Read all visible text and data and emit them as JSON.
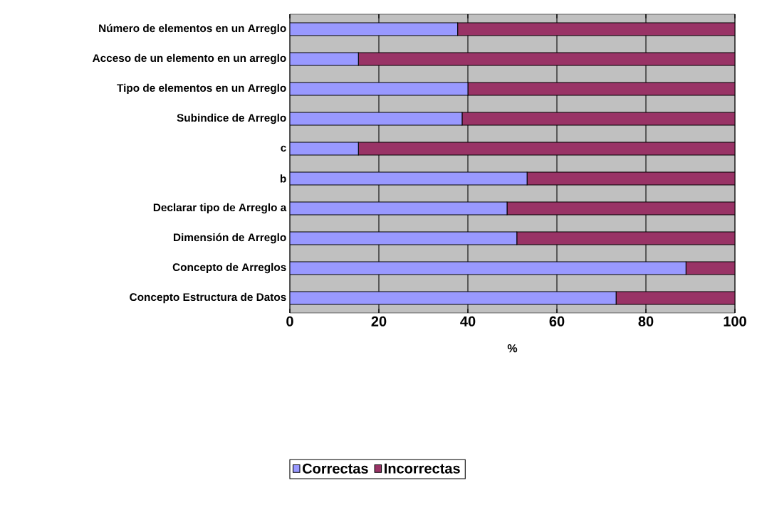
{
  "chart_data": {
    "type": "bar",
    "orientation": "horizontal",
    "stacked": true,
    "categories": [
      "Número de elementos en un Arreglo",
      "Acceso de un elemento en un arreglo",
      "Tipo de elementos en un Arreglo",
      "Subindice de Arreglo",
      "c",
      "b",
      "Declarar tipo de Arreglo a",
      "Dimensión de Arreglo",
      "Concepto de Arreglos",
      "Concepto Estructura de Datos"
    ],
    "series": [
      {
        "name": "Correctas",
        "color": "#9999ff",
        "values": [
          37.7,
          15.4,
          40,
          38.7,
          15.4,
          53.3,
          48.8,
          51,
          89,
          73.3
        ]
      },
      {
        "name": "Incorrectas",
        "color": "#993366",
        "values": [
          62.3,
          84.6,
          60,
          61.3,
          84.6,
          46.7,
          51.2,
          49,
          11,
          26.7
        ]
      }
    ],
    "xlabel": "%",
    "xlim": [
      0,
      100
    ],
    "xticks": [
      0,
      20,
      40,
      60,
      80,
      100
    ],
    "grid": "x",
    "legend": "bottom"
  }
}
